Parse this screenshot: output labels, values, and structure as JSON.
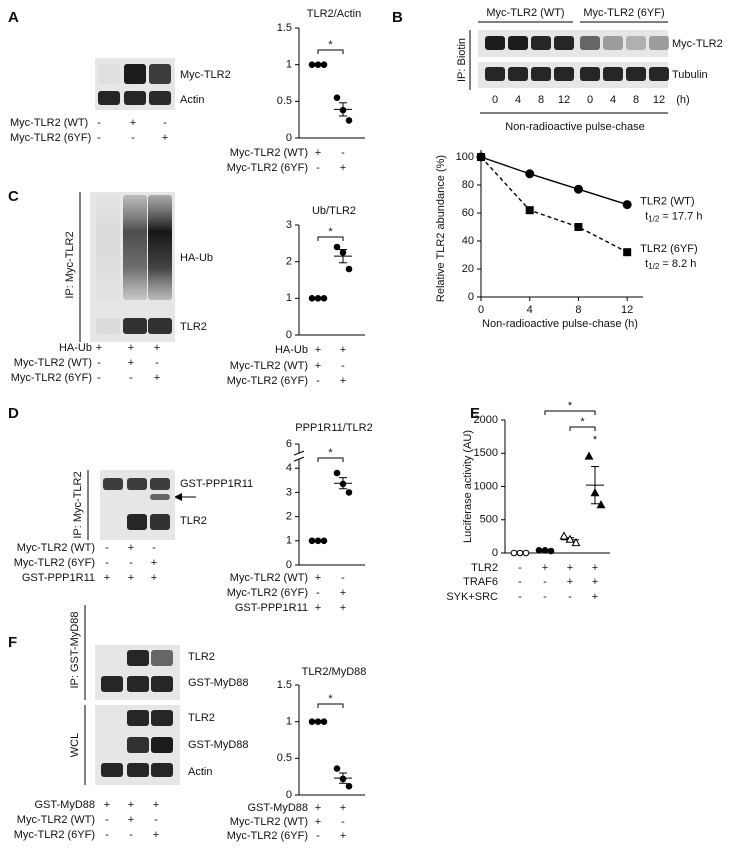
{
  "panels": [
    "A",
    "B",
    "C",
    "D",
    "E",
    "F"
  ],
  "blots": [
    {
      "bands": [
        "Myc-TLR2",
        "Actin"
      ],
      "conditions": [
        {
          "label": "Myc-TLR2 (WT)",
          "signs": [
            "-",
            "+",
            "-"
          ]
        },
        {
          "label": "Myc-TLR2 (6YF)",
          "signs": [
            "-",
            "-",
            "+"
          ]
        }
      ]
    },
    {
      "headers": [
        "Myc-TLR2 (WT)",
        "Myc-TLR2 (6YF)"
      ],
      "bands": [
        "Myc-TLR2",
        "Tubulin"
      ],
      "sides": [
        "IP: Biotin"
      ],
      "lanes": [
        "0",
        "4",
        "8",
        "12",
        "0",
        "4",
        "8",
        "12"
      ],
      "lane_unit": "(h)",
      "footer": "Non-radioactive pulse-chase"
    },
    {
      "sides": [
        "IP: Myc-TLR2"
      ],
      "bands": [
        "HA-Ub",
        "TLR2"
      ],
      "conditions": [
        {
          "label": "HA-Ub",
          "signs": [
            "+",
            "+",
            "+"
          ]
        },
        {
          "label": "Myc-TLR2 (WT)",
          "signs": [
            "-",
            "+",
            "-"
          ]
        },
        {
          "label": "Myc-TLR2 (6YF)",
          "signs": [
            "-",
            "-",
            "+"
          ]
        }
      ]
    },
    {
      "sides": [
        "IP: Myc-TLR2"
      ],
      "bands": [
        "GST-PPP1R11",
        "TLR2"
      ],
      "conditions": [
        {
          "label": "Myc-TLR2 (WT)",
          "signs": [
            "-",
            "+",
            "-"
          ]
        },
        {
          "label": "Myc-TLR2 (6YF)",
          "signs": [
            "-",
            "-",
            "+"
          ]
        },
        {
          "label": "GST-PPP1R11",
          "signs": [
            "+",
            "+",
            "+"
          ]
        }
      ]
    },
    {
      "sides": [
        "IP: GST-MyD88",
        "WCL"
      ],
      "bands": [
        "TLR2",
        "GST-MyD88",
        "TLR2",
        "GST-MyD88",
        "Actin"
      ],
      "conditions": [
        {
          "label": "GST-MyD88",
          "signs": [
            "+",
            "+",
            "+"
          ]
        },
        {
          "label": "Myc-TLR2 (WT)",
          "signs": [
            "-",
            "+",
            "-"
          ]
        },
        {
          "label": "Myc-TLR2 (6YF)",
          "signs": [
            "-",
            "-",
            "+"
          ]
        }
      ]
    }
  ],
  "chart_data": [
    {
      "type": "dotplot",
      "title": "TLR2/Actin",
      "ylim": [
        0,
        1.5
      ],
      "yticks": [
        0,
        0.5,
        1,
        1.5
      ],
      "groups": [
        {
          "values": [
            1,
            1,
            1
          ],
          "mean": 1,
          "sem": 0
        },
        {
          "values": [
            0.55,
            0.38,
            0.24
          ],
          "mean": 0.39,
          "sem": 0.09
        }
      ],
      "conditions": [
        {
          "label": "Myc-TLR2 (WT)",
          "signs": [
            "+",
            "-"
          ]
        },
        {
          "label": "Myc-TLR2 (6YF)",
          "signs": [
            "-",
            "+"
          ]
        }
      ],
      "significance": [
        {
          "groups": [
            0,
            1
          ],
          "label": "*"
        }
      ]
    },
    {
      "type": "line",
      "xlabel": "Non-radioactive pulse-chase (h)",
      "ylabel": "Relative TLR2 abundance (%)",
      "x": [
        0,
        4,
        8,
        12
      ],
      "xlim": [
        0,
        13.3
      ],
      "xticks": [
        0,
        4,
        8,
        12
      ],
      "ylim": [
        0,
        105
      ],
      "yticks": [
        0,
        20,
        40,
        60,
        80,
        100
      ],
      "series": [
        {
          "name": "TLR2 (WT)",
          "marker": "circle",
          "dash": false,
          "values": [
            100,
            88,
            77,
            66
          ],
          "t_label": "t",
          "t_sub": "1/2",
          "t_rest": " = 17.7 h"
        },
        {
          "name": "TLR2 (6YF)",
          "marker": "square",
          "dash": true,
          "values": [
            100,
            62,
            50,
            32
          ],
          "t_label": "t",
          "t_sub": "1/2",
          "t_rest": " = 8.2 h"
        }
      ]
    },
    {
      "type": "dotplot",
      "title": "Ub/TLR2",
      "ylim": [
        0,
        3
      ],
      "yticks": [
        0,
        1,
        2,
        3
      ],
      "groups": [
        {
          "values": [
            1,
            1,
            1
          ],
          "mean": 1,
          "sem": 0
        },
        {
          "values": [
            2.4,
            2.25,
            1.8
          ],
          "mean": 2.15,
          "sem": 0.18
        }
      ],
      "conditions": [
        {
          "label": "HA-Ub",
          "signs": [
            "+",
            "+"
          ]
        },
        {
          "label": "Myc-TLR2 (WT)",
          "signs": [
            "+",
            "-"
          ]
        },
        {
          "label": "Myc-TLR2 (6YF)",
          "signs": [
            "-",
            "+"
          ]
        }
      ],
      "significance": [
        {
          "groups": [
            0,
            1
          ],
          "label": "*"
        }
      ]
    },
    {
      "type": "dotplot",
      "title": "PPP1R11/TLR2",
      "ylim": [
        0,
        6
      ],
      "yticks": [
        0,
        1,
        2,
        3,
        4,
        6
      ],
      "axis_break": [
        4.5,
        5.5
      ],
      "groups": [
        {
          "values": [
            1,
            1,
            1
          ],
          "mean": 1,
          "sem": 0
        },
        {
          "values": [
            3.8,
            3.35,
            3.0
          ],
          "mean": 3.38,
          "sem": 0.23
        }
      ],
      "conditions": [
        {
          "label": "Myc-TLR2 (WT)",
          "signs": [
            "+",
            "-"
          ]
        },
        {
          "label": "Myc-TLR2 (6YF)",
          "signs": [
            "-",
            "+"
          ]
        },
        {
          "label": "GST-PPP1R11",
          "signs": [
            "+",
            "+"
          ]
        }
      ],
      "significance": [
        {
          "groups": [
            0,
            1
          ],
          "label": "*"
        }
      ]
    },
    {
      "type": "dotplot",
      "ylabel": "Luciferase activity (AU)",
      "ylim": [
        0,
        2000
      ],
      "yticks": [
        0,
        500,
        1000,
        1500,
        2000
      ],
      "markers": [
        "circle-open",
        "circle",
        "triangle-open",
        "triangle"
      ],
      "groups": [
        {
          "values": [
            0,
            0,
            0
          ],
          "mean": 0,
          "sem": 0
        },
        {
          "values": [
            40,
            40,
            30
          ],
          "mean": 37,
          "sem": 3
        },
        {
          "values": [
            250,
            200,
            150
          ],
          "mean": 200,
          "sem": 30
        },
        {
          "values": [
            1450,
            900,
            720
          ],
          "mean": 1020,
          "sem": 280
        }
      ],
      "conditions": [
        {
          "label": "TLR2",
          "signs": [
            "-",
            "+",
            "+",
            "+"
          ]
        },
        {
          "label": "TRAF6",
          "signs": [
            "-",
            "-",
            "+",
            "+"
          ]
        },
        {
          "label": "SYK+SRC",
          "signs": [
            "-",
            "-",
            "-",
            "+"
          ]
        }
      ],
      "significance": [
        {
          "groups": [
            1,
            3
          ],
          "label": "*"
        },
        {
          "groups": [
            2,
            3
          ],
          "label": "*"
        }
      ],
      "annotations": [
        {
          "group": 3,
          "label": "*"
        }
      ]
    },
    {
      "type": "dotplot",
      "title": "TLR2/MyD88",
      "ylim": [
        0,
        1.5
      ],
      "yticks": [
        0,
        0.5,
        1,
        1.5
      ],
      "groups": [
        {
          "values": [
            1,
            1,
            1
          ],
          "mean": 1,
          "sem": 0
        },
        {
          "values": [
            0.36,
            0.22,
            0.12
          ],
          "mean": 0.23,
          "sem": 0.07
        }
      ],
      "conditions": [
        {
          "label": "GST-MyD88",
          "signs": [
            "+",
            "+"
          ]
        },
        {
          "label": "Myc-TLR2 (WT)",
          "signs": [
            "+",
            "-"
          ]
        },
        {
          "label": "Myc-TLR2 (6YF)",
          "signs": [
            "-",
            "+"
          ]
        }
      ],
      "significance": [
        {
          "groups": [
            0,
            1
          ],
          "label": "*"
        }
      ]
    }
  ]
}
